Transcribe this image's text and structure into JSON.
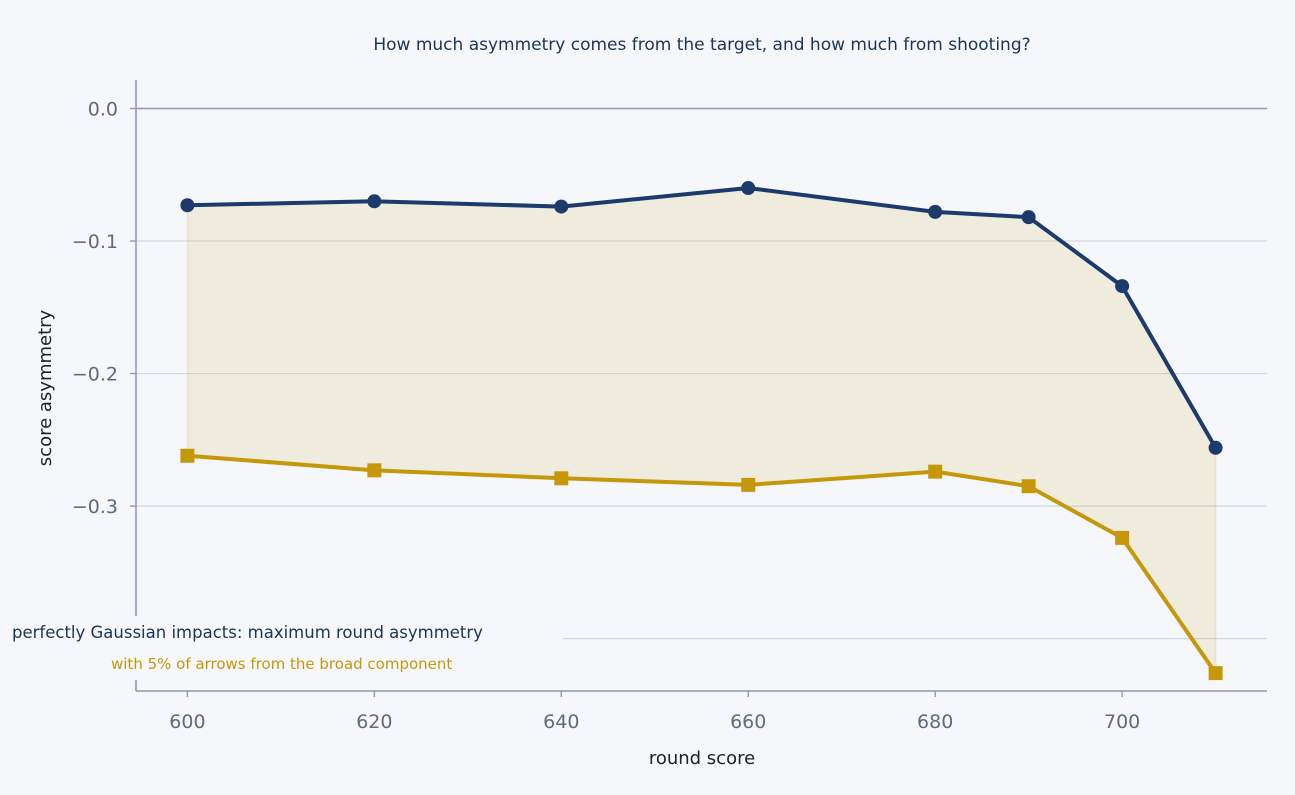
{
  "chart_data": {
    "type": "line",
    "title": "How much asymmetry comes from the target, and how much from shooting?",
    "xlabel": "round score",
    "ylabel": "score asymmetry",
    "x": [
      600,
      620,
      640,
      660,
      680,
      690,
      700,
      710
    ],
    "xticks": [
      600,
      620,
      640,
      660,
      680,
      700
    ],
    "xtick_labels": [
      "600",
      "620",
      "640",
      "660",
      "680",
      "700"
    ],
    "yticks": [
      0.0,
      -0.1,
      -0.2,
      -0.3
    ],
    "ytick_labels": [
      "0.0",
      "−0.1",
      "−0.2",
      "−0.3"
    ],
    "xlim": [
      594.5,
      715.5
    ],
    "ylim": [
      -0.4395,
      0.0215
    ],
    "grid": "horizontal",
    "series": [
      {
        "name": "perfectly Gaussian impacts: maximum round asymmetry",
        "values": [
          -0.073,
          -0.07,
          -0.074,
          -0.06,
          -0.078,
          -0.082,
          -0.134,
          -0.256
        ],
        "color": "#1c3a6b",
        "marker": "circle"
      },
      {
        "name": "with 5% of arrows from the broad component",
        "values": [
          -0.262,
          -0.273,
          -0.279,
          -0.284,
          -0.274,
          -0.285,
          -0.324,
          -0.426
        ],
        "color": "#c5980b",
        "marker": "square"
      }
    ],
    "fill_between": {
      "color": "#c5980b"
    },
    "legend_position": "lower-left"
  }
}
